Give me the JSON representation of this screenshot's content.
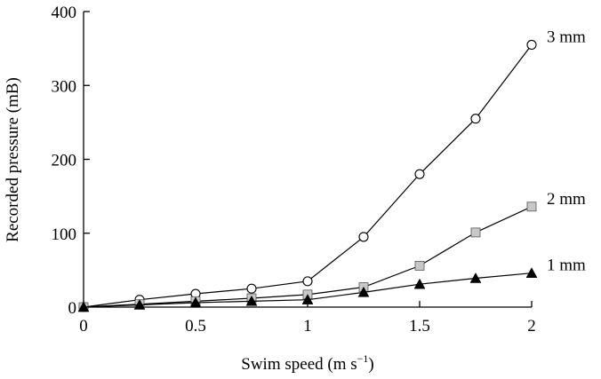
{
  "chart_data": {
    "type": "line",
    "title": "",
    "xlabel": {
      "text": "Swim speed (m s",
      "sup": "−1",
      "close": ")"
    },
    "ylabel": "Recorded pressure (mB)",
    "x": [
      0,
      0.25,
      0.5,
      0.75,
      1,
      1.25,
      1.5,
      1.75,
      2
    ],
    "xlim": [
      0,
      2
    ],
    "ylim": [
      0,
      400
    ],
    "xticks": [
      {
        "value": 0,
        "label": "0"
      },
      {
        "value": 0.5,
        "label": "0.5"
      },
      {
        "value": 1,
        "label": "1"
      },
      {
        "value": 1.5,
        "label": "1.5"
      },
      {
        "value": 2,
        "label": "2"
      }
    ],
    "yticks": [
      {
        "value": 0,
        "label": "0"
      },
      {
        "value": 100,
        "label": "100"
      },
      {
        "value": 200,
        "label": "200"
      },
      {
        "value": 300,
        "label": "300"
      },
      {
        "value": 400,
        "label": "400"
      }
    ],
    "grid": false,
    "legend": "direct labels at line ends (right)",
    "series": [
      {
        "name": "3 mm",
        "marker": "open-circle",
        "values": [
          0,
          10,
          18,
          25,
          35,
          95,
          180,
          255,
          355
        ]
      },
      {
        "name": "2 mm",
        "marker": "gray-square",
        "values": [
          0,
          4,
          8,
          12,
          17,
          27,
          56,
          101,
          136
        ]
      },
      {
        "name": "1 mm",
        "marker": "black-triangle",
        "values": [
          0,
          3,
          6,
          8,
          10,
          20,
          31,
          39,
          46
        ]
      }
    ]
  },
  "colors": {
    "line": "#000000",
    "square_fill": "#c8c8c8",
    "circle_fill": "#ffffff",
    "triangle_fill": "#000000"
  }
}
